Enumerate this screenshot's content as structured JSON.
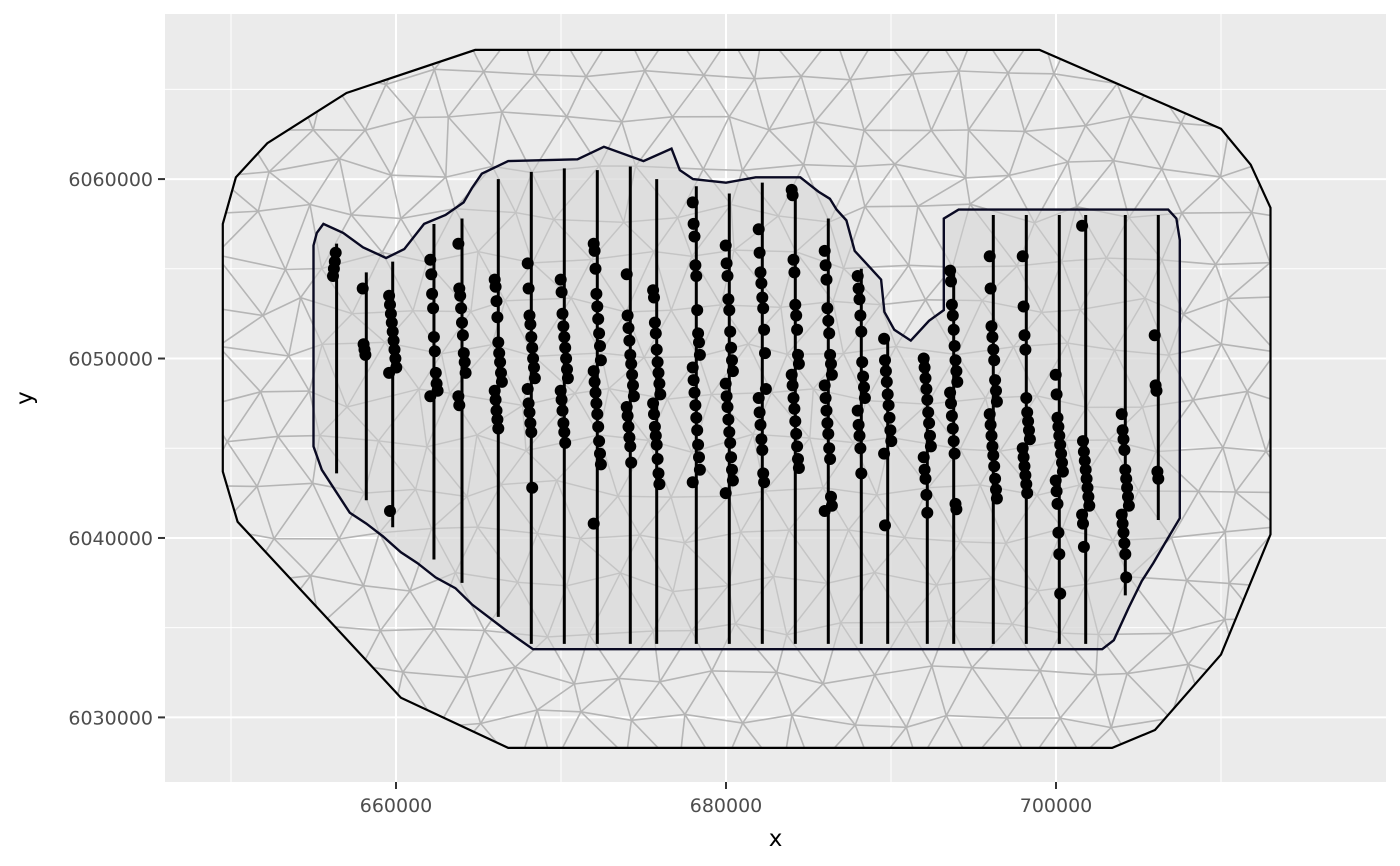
{
  "chart_data": {
    "type": "scatter",
    "title": "",
    "xlabel": "x",
    "ylabel": "y",
    "xlim": [
      646000,
      720000
    ],
    "ylim": [
      6026400,
      6069200
    ],
    "x_ticks": [
      660000,
      680000,
      700000
    ],
    "x_tick_labels": [
      "660000",
      "680000",
      "700000"
    ],
    "y_ticks": [
      6030000,
      6040000,
      6050000,
      6060000
    ],
    "y_tick_labels": [
      "6030000",
      "6040000",
      "6050000",
      "6060000"
    ],
    "grid": true,
    "colors": {
      "panel": "#ebebeb",
      "grid": "#ffffff",
      "mesh": "#b5b5b5",
      "study_area_fill": "#d9d9d9",
      "outline": "#000000",
      "inner_outline": "#0a0a23",
      "points": "#000000"
    },
    "outer_boundary": [
      [
        664800,
        6067200
      ],
      [
        699000,
        6067200
      ],
      [
        710000,
        6062800
      ],
      [
        711800,
        6060800
      ],
      [
        713000,
        6058400
      ],
      [
        713000,
        6040200
      ],
      [
        710000,
        6033500
      ],
      [
        706000,
        6029300
      ],
      [
        703400,
        6028300
      ],
      [
        666800,
        6028300
      ],
      [
        660300,
        6031100
      ],
      [
        650400,
        6040900
      ],
      [
        649500,
        6043700
      ],
      [
        649500,
        6057500
      ],
      [
        650300,
        6060100
      ],
      [
        652200,
        6062000
      ],
      [
        657000,
        6064800
      ],
      [
        664800,
        6067200
      ]
    ],
    "study_area": [
      [
        655000,
        6056300
      ],
      [
        655200,
        6057000
      ],
      [
        655600,
        6057500
      ],
      [
        656800,
        6057000
      ],
      [
        658000,
        6056200
      ],
      [
        659400,
        6055600
      ],
      [
        660500,
        6056100
      ],
      [
        661700,
        6057500
      ],
      [
        663000,
        6058000
      ],
      [
        664100,
        6058700
      ],
      [
        664600,
        6059500
      ],
      [
        665200,
        6060300
      ],
      [
        666800,
        6061000
      ],
      [
        671000,
        6061100
      ],
      [
        672600,
        6061800
      ],
      [
        675000,
        6061000
      ],
      [
        676700,
        6061700
      ],
      [
        677200,
        6060500
      ],
      [
        678000,
        6060000
      ],
      [
        680000,
        6059800
      ],
      [
        681800,
        6060100
      ],
      [
        684500,
        6060100
      ],
      [
        685600,
        6059300
      ],
      [
        686300,
        6058900
      ],
      [
        686700,
        6058300
      ],
      [
        687300,
        6057700
      ],
      [
        687800,
        6056000
      ],
      [
        688800,
        6055000
      ],
      [
        689000,
        6054800
      ],
      [
        689400,
        6054400
      ],
      [
        689600,
        6052600
      ],
      [
        690200,
        6051600
      ],
      [
        691200,
        6051000
      ],
      [
        692300,
        6052100
      ],
      [
        693200,
        6052700
      ],
      [
        693200,
        6057800
      ],
      [
        694100,
        6058300
      ],
      [
        706800,
        6058300
      ],
      [
        707300,
        6057800
      ],
      [
        707500,
        6056600
      ],
      [
        707500,
        6041100
      ],
      [
        706600,
        6039700
      ],
      [
        705900,
        6038600
      ],
      [
        705200,
        6037600
      ],
      [
        704400,
        6036100
      ],
      [
        703500,
        6034300
      ],
      [
        702800,
        6033800
      ],
      [
        668300,
        6033800
      ],
      [
        666600,
        6034900
      ],
      [
        665600,
        6035600
      ],
      [
        664600,
        6036300
      ],
      [
        663600,
        6037200
      ],
      [
        662400,
        6037800
      ],
      [
        661300,
        6038600
      ],
      [
        660300,
        6039200
      ],
      [
        659200,
        6040100
      ],
      [
        658200,
        6040800
      ],
      [
        657200,
        6041400
      ],
      [
        655500,
        6043800
      ],
      [
        655000,
        6045100
      ],
      [
        655000,
        6056300
      ]
    ],
    "transects": [
      {
        "x": 656400,
        "y_min": 6043600,
        "y_max": 6056400
      },
      {
        "x": 658200,
        "y_min": 6042100,
        "y_max": 6054800
      },
      {
        "x": 659800,
        "y_min": 6040600,
        "y_max": 6055400
      },
      {
        "x": 662300,
        "y_min": 6038800,
        "y_max": 6057500
      },
      {
        "x": 664000,
        "y_min": 6037500,
        "y_max": 6057800
      },
      {
        "x": 666200,
        "y_min": 6035600,
        "y_max": 6060000
      },
      {
        "x": 668200,
        "y_min": 6034100,
        "y_max": 6060400
      },
      {
        "x": 670200,
        "y_min": 6034100,
        "y_max": 6060600
      },
      {
        "x": 672200,
        "y_min": 6034100,
        "y_max": 6060500
      },
      {
        "x": 674200,
        "y_min": 6034100,
        "y_max": 6060700
      },
      {
        "x": 675800,
        "y_min": 6034100,
        "y_max": 6060000
      },
      {
        "x": 678200,
        "y_min": 6034100,
        "y_max": 6059600
      },
      {
        "x": 680200,
        "y_min": 6034100,
        "y_max": 6059200
      },
      {
        "x": 682200,
        "y_min": 6034100,
        "y_max": 6059800
      },
      {
        "x": 684200,
        "y_min": 6034100,
        "y_max": 6059500
      },
      {
        "x": 686200,
        "y_min": 6034100,
        "y_max": 6057800
      },
      {
        "x": 688200,
        "y_min": 6034100,
        "y_max": 6055000
      },
      {
        "x": 689800,
        "y_min": 6034100,
        "y_max": 6051000
      },
      {
        "x": 692200,
        "y_min": 6034100,
        "y_max": 6050000
      },
      {
        "x": 693800,
        "y_min": 6034100,
        "y_max": 6055000
      },
      {
        "x": 696200,
        "y_min": 6034100,
        "y_max": 6058000
      },
      {
        "x": 698200,
        "y_min": 6034100,
        "y_max": 6058000
      },
      {
        "x": 700200,
        "y_min": 6034100,
        "y_max": 6058000
      },
      {
        "x": 701800,
        "y_min": 6034100,
        "y_max": 6058000
      },
      {
        "x": 704200,
        "y_min": 6036800,
        "y_max": 6058000
      },
      {
        "x": 706200,
        "y_min": 6041000,
        "y_max": 6058000
      }
    ],
    "detection_clusters": [
      {
        "x": 656400,
        "y": [
          6054600,
          6055000,
          6055400,
          6055900
        ]
      },
      {
        "x": 658200,
        "y": [
          6053900,
          6050800,
          6050500,
          6050200
        ]
      },
      {
        "x": 659800,
        "y": [
          6053500,
          6053000,
          6052500,
          6052000,
          6051500,
          6051000,
          6050500,
          6050000,
          6049500,
          6049200,
          6041500
        ]
      },
      {
        "x": 662300,
        "y": [
          6055500,
          6054700,
          6053600,
          6052800,
          6051200,
          6050400,
          6049200,
          6048600,
          6048200,
          6047900
        ]
      },
      {
        "x": 664000,
        "y": [
          6056400,
          6053900,
          6053500,
          6052800,
          6052000,
          6051300,
          6050300,
          6049800,
          6049200,
          6047900,
          6047400
        ]
      },
      {
        "x": 666200,
        "y": [
          6054400,
          6054000,
          6053200,
          6052300,
          6050900,
          6050300,
          6049800,
          6049200,
          6048700,
          6048200,
          6047700,
          6047100,
          6046600,
          6046100
        ]
      },
      {
        "x": 668200,
        "y": [
          6055300,
          6053900,
          6052400,
          6051900,
          6051200,
          6050600,
          6050000,
          6049500,
          6048900,
          6048300,
          6047500,
          6047000,
          6046400,
          6045900,
          6042800
        ]
      },
      {
        "x": 670200,
        "y": [
          6054400,
          6053700,
          6052500,
          6051800,
          6051200,
          6050600,
          6050000,
          6049400,
          6048900,
          6048200,
          6047700,
          6047100,
          6046400,
          6045900,
          6045300
        ]
      },
      {
        "x": 672200,
        "y": [
          6056400,
          6056000,
          6055000,
          6053600,
          6052900,
          6052200,
          6051400,
          6050700,
          6049900,
          6049300,
          6048700,
          6048100,
          6047500,
          6046900,
          6046200,
          6045400,
          6044700,
          6044100,
          6040800
        ]
      },
      {
        "x": 674200,
        "y": [
          6054700,
          6052400,
          6051700,
          6051000,
          6050200,
          6049700,
          6049100,
          6048500,
          6047900,
          6047300,
          6046800,
          6046200,
          6045600,
          6045100,
          6044200
        ]
      },
      {
        "x": 675800,
        "y": [
          6053800,
          6053400,
          6052000,
          6051400,
          6050500,
          6049800,
          6049200,
          6048600,
          6048000,
          6047500,
          6046900,
          6046200,
          6045700,
          6045200,
          6044400,
          6043600,
          6043000
        ]
      },
      {
        "x": 678200,
        "y": [
          6058700,
          6057500,
          6056800,
          6055200,
          6054600,
          6052700,
          6051400,
          6050900,
          6050200,
          6049500,
          6048800,
          6048100,
          6047400,
          6046700,
          6046000,
          6045200,
          6044500,
          6043800,
          6043100
        ]
      },
      {
        "x": 680200,
        "y": [
          6056300,
          6055300,
          6054600,
          6053300,
          6052700,
          6051500,
          6050600,
          6049900,
          6049300,
          6048600,
          6047900,
          6047300,
          6046600,
          6045900,
          6045300,
          6044500,
          6043800,
          6043200,
          6042500
        ]
      },
      {
        "x": 682200,
        "y": [
          6057200,
          6055900,
          6054800,
          6054200,
          6053400,
          6052800,
          6051600,
          6050300,
          6048300,
          6047800,
          6047000,
          6046300,
          6045500,
          6044900,
          6043600,
          6043100
        ]
      },
      {
        "x": 684200,
        "y": [
          6059400,
          6059100,
          6055500,
          6054800,
          6053000,
          6052400,
          6051600,
          6050200,
          6049700,
          6049100,
          6048500,
          6047800,
          6047200,
          6046500,
          6045800,
          6045100,
          6044400,
          6043900
        ]
      },
      {
        "x": 686200,
        "y": [
          6056000,
          6055200,
          6054400,
          6052800,
          6052100,
          6051400,
          6050200,
          6049700,
          6049100,
          6048500,
          6047800,
          6047100,
          6046400,
          6045800,
          6045000,
          6044400,
          6042300,
          6041800,
          6041500
        ]
      },
      {
        "x": 688200,
        "y": [
          6054600,
          6053900,
          6053300,
          6052400,
          6051500,
          6049800,
          6049000,
          6048400,
          6047800,
          6047100,
          6046300,
          6045700,
          6045000,
          6043600
        ]
      },
      {
        "x": 689800,
        "y": [
          6051100,
          6049900,
          6049300,
          6048700,
          6048000,
          6047400,
          6046700,
          6046000,
          6045400,
          6044700,
          6040700
        ]
      },
      {
        "x": 692200,
        "y": [
          6050000,
          6049500,
          6048900,
          6048300,
          6047700,
          6047000,
          6046400,
          6045700,
          6045100,
          6044500,
          6043800,
          6043300,
          6042400,
          6041400
        ]
      },
      {
        "x": 693800,
        "y": [
          6054900,
          6054300,
          6053000,
          6052400,
          6051600,
          6050700,
          6049900,
          6049300,
          6048700,
          6048100,
          6047500,
          6046800,
          6046100,
          6045400,
          6044700,
          6041900,
          6041600
        ]
      },
      {
        "x": 696200,
        "y": [
          6055700,
          6053900,
          6051800,
          6051200,
          6050500,
          6049900,
          6048800,
          6048200,
          6047600,
          6046900,
          6046300,
          6045700,
          6045100,
          6044600,
          6044000,
          6043300,
          6042700,
          6042200
        ]
      },
      {
        "x": 698200,
        "y": [
          6055700,
          6052900,
          6051300,
          6050500,
          6047800,
          6047000,
          6046500,
          6046000,
          6045500,
          6045000,
          6044500,
          6044000,
          6043500,
          6043000,
          6042500
        ]
      },
      {
        "x": 700200,
        "y": [
          6049100,
          6048000,
          6046700,
          6046200,
          6045700,
          6045200,
          6044700,
          6044200,
          6043700,
          6043200,
          6042600,
          6041900,
          6040300,
          6039100,
          6036900
        ]
      },
      {
        "x": 701800,
        "y": [
          6057400,
          6045400,
          6044800,
          6044300,
          6043800,
          6043300,
          6042800,
          6042300,
          6041800,
          6041300,
          6040800,
          6039500
        ]
      },
      {
        "x": 704200,
        "y": [
          6046900,
          6046000,
          6045500,
          6044900,
          6043800,
          6043300,
          6042800,
          6042300,
          6041800,
          6041300,
          6040800,
          6040300,
          6039700,
          6039100,
          6037800
        ]
      },
      {
        "x": 706200,
        "y": [
          6051300,
          6048500,
          6048200,
          6043700,
          6043300
        ]
      }
    ]
  }
}
